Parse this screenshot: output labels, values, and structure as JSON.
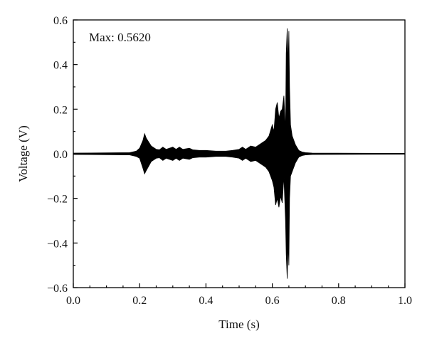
{
  "chart_data": {
    "type": "line",
    "title": "",
    "xlabel": "Time (s)",
    "ylabel": "Voltage (V)",
    "xlim": [
      0.0,
      1.0
    ],
    "ylim": [
      -0.6,
      0.6
    ],
    "x_ticks": [
      "0.0",
      "0.2",
      "0.4",
      "0.6",
      "0.8",
      "1.0"
    ],
    "y_ticks": [
      "0.6",
      "0.4",
      "0.2",
      "0.0",
      "−0.2",
      "−0.4",
      "−0.6"
    ],
    "grid": false,
    "annotation": "Max: 0.5620",
    "line_color": "#000000",
    "envelope": {
      "x": [
        0.0,
        0.17,
        0.19,
        0.2,
        0.21,
        0.215,
        0.22,
        0.235,
        0.25,
        0.26,
        0.27,
        0.28,
        0.3,
        0.31,
        0.32,
        0.33,
        0.35,
        0.36,
        0.38,
        0.4,
        0.43,
        0.46,
        0.48,
        0.5,
        0.51,
        0.52,
        0.535,
        0.55,
        0.57,
        0.58,
        0.59,
        0.6,
        0.605,
        0.61,
        0.615,
        0.62,
        0.625,
        0.63,
        0.635,
        0.64,
        0.642,
        0.645,
        0.648,
        0.65,
        0.652,
        0.655,
        0.66,
        0.67,
        0.68,
        0.69,
        0.7,
        0.72,
        1.0
      ],
      "upper": [
        0.003,
        0.005,
        0.012,
        0.025,
        0.06,
        0.09,
        0.07,
        0.035,
        0.02,
        0.018,
        0.03,
        0.02,
        0.03,
        0.02,
        0.03,
        0.02,
        0.025,
        0.018,
        0.015,
        0.015,
        0.012,
        0.012,
        0.015,
        0.02,
        0.03,
        0.02,
        0.035,
        0.03,
        0.05,
        0.06,
        0.08,
        0.13,
        0.1,
        0.2,
        0.23,
        0.16,
        0.19,
        0.2,
        0.26,
        0.1,
        0.45,
        0.562,
        0.4,
        0.55,
        0.3,
        0.13,
        0.08,
        0.04,
        0.015,
        0.008,
        0.005,
        0.003,
        0.002
      ],
      "lower": [
        -0.003,
        -0.005,
        -0.012,
        -0.02,
        -0.065,
        -0.09,
        -0.075,
        -0.035,
        -0.02,
        -0.018,
        -0.03,
        -0.02,
        -0.03,
        -0.02,
        -0.03,
        -0.02,
        -0.025,
        -0.018,
        -0.015,
        -0.015,
        -0.012,
        -0.012,
        -0.015,
        -0.02,
        -0.03,
        -0.02,
        -0.035,
        -0.03,
        -0.05,
        -0.06,
        -0.08,
        -0.12,
        -0.15,
        -0.23,
        -0.2,
        -0.24,
        -0.19,
        -0.22,
        -0.1,
        -0.3,
        -0.45,
        -0.56,
        -0.4,
        -0.5,
        -0.2,
        -0.1,
        -0.08,
        -0.04,
        -0.015,
        -0.008,
        -0.005,
        -0.003,
        -0.002
      ]
    }
  }
}
